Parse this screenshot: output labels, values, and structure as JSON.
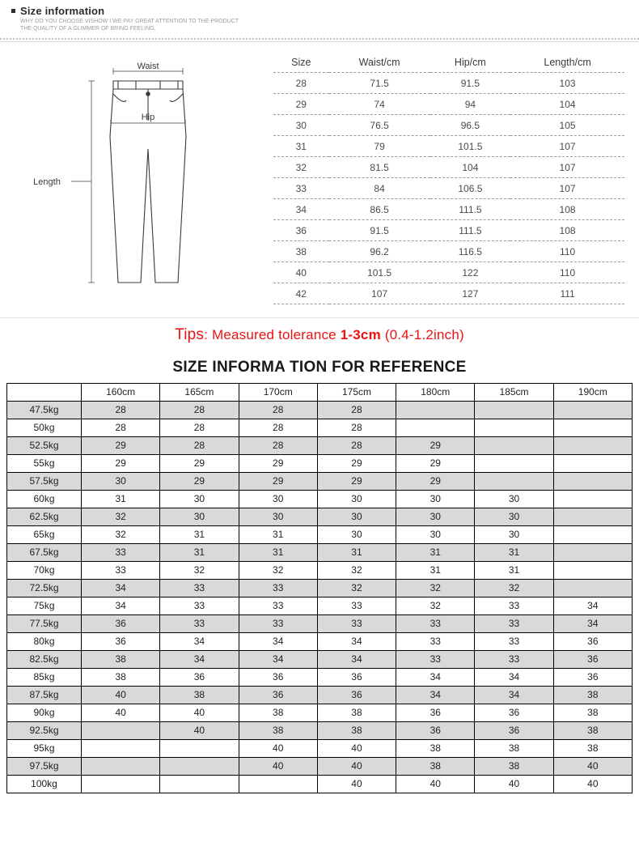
{
  "header": {
    "title": "Size information",
    "sub1": "WHY DO YOU CHOOSE VISHOW I WE PAY GREAT ATTENTION TO THE PRODUCT",
    "sub2": "THE QUALITY OF A GLIMMER OF BRING FEELING."
  },
  "diagram": {
    "labels": {
      "waist": "Waist",
      "hip": "Hip",
      "length": "Length"
    },
    "stroke_color": "#3a3a3a"
  },
  "size_table": {
    "columns": [
      "Size",
      "Waist/cm",
      "Hip/cm",
      "Length/cm"
    ],
    "rows": [
      [
        "28",
        "71.5",
        "91.5",
        "103"
      ],
      [
        "29",
        "74",
        "94",
        "104"
      ],
      [
        "30",
        "76.5",
        "96.5",
        "105"
      ],
      [
        "31",
        "79",
        "101.5",
        "107"
      ],
      [
        "32",
        "81.5",
        "104",
        "107"
      ],
      [
        "33",
        "84",
        "106.5",
        "107"
      ],
      [
        "34",
        "86.5",
        "111.5",
        "108"
      ],
      [
        "36",
        "91.5",
        "111.5",
        "108"
      ],
      [
        "38",
        "96.2",
        "116.5",
        "110"
      ],
      [
        "40",
        "101.5",
        "122",
        "110"
      ],
      [
        "42",
        "107",
        "127",
        "111"
      ]
    ],
    "header_fontsize": 12.5,
    "cell_fontsize": 12,
    "dash_color": "#9a9a9a"
  },
  "tips": {
    "label": "Tips",
    "colon": ": ",
    "text_a": "Measured tolerance ",
    "bold": "1-3cm",
    "text_b": " (0.4-1.2inch)",
    "color": "#ee1111",
    "fontsize": 17
  },
  "ref_table": {
    "title": "SIZE INFORMA TION FOR REFERENCE",
    "title_fontsize": 19,
    "columns": [
      "",
      "160cm",
      "165cm",
      "170cm",
      "175cm",
      "180cm",
      "185cm",
      "190cm"
    ],
    "rows": [
      [
        "47.5kg",
        "28",
        "28",
        "28",
        "28",
        "",
        "",
        ""
      ],
      [
        "50kg",
        "28",
        "28",
        "28",
        "28",
        "",
        "",
        ""
      ],
      [
        "52.5kg",
        "29",
        "28",
        "28",
        "28",
        "29",
        "",
        ""
      ],
      [
        "55kg",
        "29",
        "29",
        "29",
        "29",
        "29",
        "",
        ""
      ],
      [
        "57.5kg",
        "30",
        "29",
        "29",
        "29",
        "29",
        "",
        ""
      ],
      [
        "60kg",
        "31",
        "30",
        "30",
        "30",
        "30",
        "30",
        ""
      ],
      [
        "62.5kg",
        "32",
        "30",
        "30",
        "30",
        "30",
        "30",
        ""
      ],
      [
        "65kg",
        "32",
        "31",
        "31",
        "30",
        "30",
        "30",
        ""
      ],
      [
        "67.5kg",
        "33",
        "31",
        "31",
        "31",
        "31",
        "31",
        ""
      ],
      [
        "70kg",
        "33",
        "32",
        "32",
        "32",
        "31",
        "31",
        ""
      ],
      [
        "72.5kg",
        "34",
        "33",
        "33",
        "32",
        "32",
        "32",
        ""
      ],
      [
        "75kg",
        "34",
        "33",
        "33",
        "33",
        "32",
        "33",
        "34"
      ],
      [
        "77.5kg",
        "36",
        "33",
        "33",
        "33",
        "33",
        "33",
        "34"
      ],
      [
        "80kg",
        "36",
        "34",
        "34",
        "34",
        "33",
        "33",
        "36"
      ],
      [
        "82.5kg",
        "38",
        "34",
        "34",
        "34",
        "33",
        "33",
        "36"
      ],
      [
        "85kg",
        "38",
        "36",
        "36",
        "36",
        "34",
        "34",
        "36"
      ],
      [
        "87.5kg",
        "40",
        "38",
        "36",
        "36",
        "34",
        "34",
        "38"
      ],
      [
        "90kg",
        "40",
        "40",
        "38",
        "38",
        "36",
        "36",
        "38"
      ],
      [
        "92.5kg",
        "",
        "40",
        "38",
        "38",
        "36",
        "36",
        "38"
      ],
      [
        "95kg",
        "",
        "",
        "40",
        "40",
        "38",
        "38",
        "38"
      ],
      [
        "97.5kg",
        "",
        "",
        "40",
        "40",
        "38",
        "38",
        "40"
      ],
      [
        "100kg",
        "",
        "",
        "",
        "40",
        "40",
        "40",
        "40"
      ]
    ],
    "odd_bg": "#d9d9d9",
    "even_bg": "#ffffff",
    "border_color": "#000000",
    "cell_fontsize": 12
  }
}
